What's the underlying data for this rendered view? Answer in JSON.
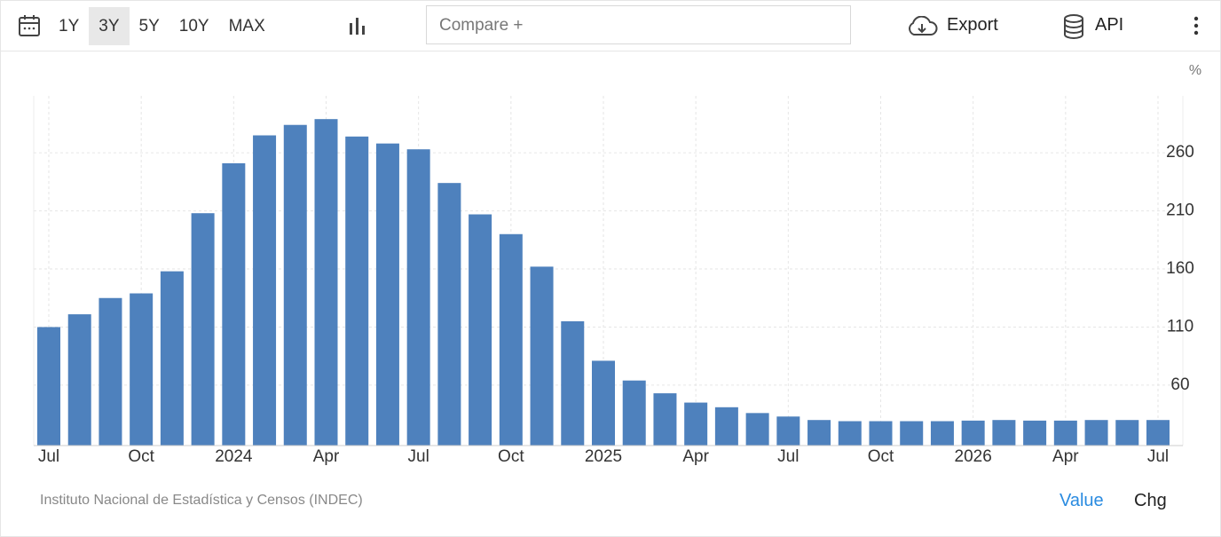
{
  "toolbar": {
    "ranges": [
      "1Y",
      "3Y",
      "5Y",
      "10Y",
      "MAX"
    ],
    "selected_range_index": 1,
    "compare_placeholder": "Compare +",
    "export": "Export",
    "api": "API"
  },
  "chart_data": {
    "type": "bar",
    "unit_label": "%",
    "categories": [
      "Jul",
      null,
      null,
      "Oct",
      null,
      null,
      "2024",
      null,
      null,
      "Apr",
      null,
      null,
      "Jul",
      null,
      null,
      "Oct",
      null,
      null,
      "2025",
      null,
      null,
      "Apr",
      null,
      null,
      "Jul",
      null,
      null,
      "Oct",
      null,
      null,
      "2026",
      null,
      null,
      "Apr",
      null,
      null,
      "Jul"
    ],
    "values": [
      110,
      121,
      135,
      139,
      158,
      208,
      251,
      275,
      284,
      289,
      274,
      268,
      263,
      234,
      207,
      190,
      162,
      115,
      81,
      64,
      53,
      45,
      41,
      36,
      33,
      30,
      29,
      29,
      29,
      29,
      29.5,
      30,
      29.5,
      29.5,
      30,
      30,
      30
    ],
    "color": "#4e81bd",
    "ylim": [
      8,
      309
    ],
    "yticks": [
      60,
      110,
      160,
      210,
      260
    ],
    "grid": true,
    "source": "Instituto Nacional de Estadística y Censos (INDEC)"
  },
  "footer": {
    "tabs": [
      "Value",
      "Chg"
    ],
    "active_tab_index": 0
  }
}
